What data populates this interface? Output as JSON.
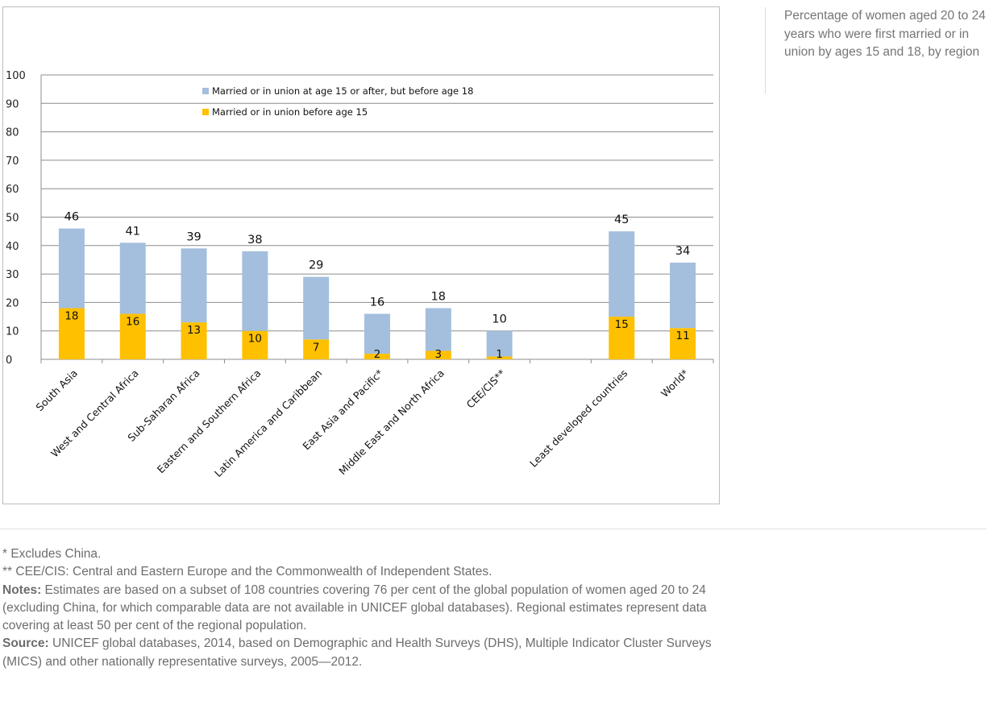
{
  "caption": "Percentage of women aged 20 to 24 years who were first married or in union by ages 15 and 18, by region",
  "chart_data": {
    "type": "bar",
    "stacked": true,
    "categories": [
      "South Asia",
      "West and Central Africa",
      "Sub-Saharan Africa",
      "Eastern and Southern Africa",
      "Latin America and Caribbean",
      "East Asia and Pacific*",
      "Middle East and North Africa",
      "CEE/CIS**",
      "",
      "Least developed countries",
      "World*"
    ],
    "series": [
      {
        "name": "Married or in union before age 15",
        "color": "#ffc000",
        "values": [
          18,
          16,
          13,
          10,
          7,
          2,
          3,
          1,
          null,
          15,
          11
        ]
      },
      {
        "name": "Married or in union at age 15 or after, but before age 18",
        "color": "#a3bfdd",
        "values": [
          28,
          25,
          26,
          28,
          22,
          14,
          15,
          9,
          null,
          30,
          23
        ]
      }
    ],
    "totals": [
      46,
      41,
      39,
      38,
      29,
      16,
      18,
      10,
      null,
      45,
      34
    ],
    "ylim": [
      0,
      100
    ],
    "yticks": [
      0,
      10,
      20,
      30,
      40,
      50,
      60,
      70,
      80,
      90,
      100
    ],
    "grid": true,
    "legend_position": "top-center",
    "legend": [
      {
        "label": "Married or in union at age 15 or after, but before age 18",
        "color": "#a3bfdd"
      },
      {
        "label": "Married or in union before age 15",
        "color": "#ffc000"
      }
    ]
  },
  "notes": {
    "footnote1": "* Excludes China.",
    "footnote2": "** CEE/CIS: Central and Eastern Europe and the Commonwealth of Independent States.",
    "notes_label": "Notes:",
    "notes_text": " Estimates are based on a subset of 108 countries covering 76 per cent of the global population of women aged 20 to 24 (excluding China, for which comparable data are not available in UNICEF global databases). Regional estimates represent data covering at least 50 per cent of the regional population.",
    "source_label": "Source:",
    "source_text": " UNICEF global databases, 2014, based on Demographic and Health Surveys (DHS), Multiple Indicator Cluster Surveys (MICS) and other nationally representative surveys, 2005—2012."
  }
}
